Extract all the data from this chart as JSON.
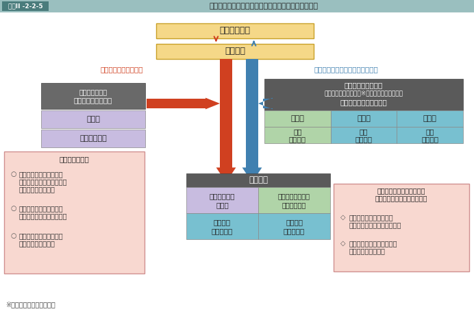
{
  "title_label": "図表II -2-2-5",
  "title_text": "自衛隊の運用体制及び統幕長と陸・海・空幕長の役割",
  "header_bg": "#9abfbf",
  "title_label_bg": "#4a7c7c",
  "title_label_color": "#ffffff",
  "box_naikaku": "内閣総理大臣",
  "box_boei": "防衛大臣",
  "box_naikaku_color": "#f5d888",
  "box_boei_color": "#f5d888",
  "box_naikaku_edge": "#d4a830",
  "label_un_left": "運用に関する指揮系統",
  "label_un_right": "運用以外の隊務に関する指揮系統",
  "label_un_left_color": "#d04020",
  "label_un_right_color": "#4080b0",
  "box_force_user_line1": "部隊運用の責任",
  "box_force_user_line2": "フォース・ユーザー",
  "box_force_user_bg": "#696969",
  "box_toubaku": "統幕長",
  "box_toubaku_bg": "#c8bce0",
  "box_tokubaku": "統合幕僚監部",
  "box_tokubaku_bg": "#c8bce0",
  "box_force_provider_line1": "部隊運用以外の責任",
  "box_force_provider_line2": "（人事、教育、訓練（※）、防衛力整備など）",
  "box_force_provider_line3": "フォース・プロバイダー",
  "box_force_provider_bg": "#5a5a5a",
  "rikubaku": "陸幕長",
  "kaibaku": "海幕長",
  "kuubaku": "空幕長",
  "rikubaku_bg": "#b0d4a8",
  "kaibaku_bg": "#78c0d0",
  "kuubaku_bg": "#78c0d0",
  "rikubo_line1": "陸上",
  "rikubo_line2": "幕僚監部",
  "kaibo_line1": "海上",
  "kaibo_line2": "幕僚監部",
  "kuubo_line1": "航空",
  "kuubo_line2": "幕僚監部",
  "rikubo_bg": "#b0d4a8",
  "kaibo_bg": "#78c0d0",
  "kuubo_bg": "#78c0d0",
  "box_jittai_title": "実動部隊",
  "box_jittai_bg": "#5a5a5a",
  "box_togobu_line1": "統合任務部隊",
  "box_togobu_line2": "指揮官",
  "box_togobu_bg": "#c8bce0",
  "box_rikuso_line1": "陸上総監司令官、",
  "box_rikuso_line2": "方面総監など",
  "box_rikuso_bg": "#b0d4a8",
  "box_jieikanjo_line1": "自衛艦隊",
  "box_jieikanjo_line2": "司令官など",
  "box_jieikanjo_bg": "#78c0d0",
  "box_koukuso_line1": "航空総隊",
  "box_koukuso_line2": "司令官など",
  "box_koukuso_bg": "#78c0d0",
  "left_box_title": "統合運用の基本",
  "left_box_bg": "#f8d8d0",
  "left_box_border": "#d09090",
  "left_item1_line1": "統幕長が自衛隊の運用に",
  "left_item1_line2": "関し、軍事専門的観点から",
  "left_item1_line3": "大臣を一元的に補佐",
  "left_item2_line1": "自衛隊に対する大臣の指",
  "left_item2_line2": "揮は、統幕長を通じて行う",
  "left_item3_line1": "自衛隊に対する大臣の命",
  "left_item3_line2": "令は、統幕長が執行",
  "right_box_title_line1": "統幕長と陸・海・空幕長は",
  "right_box_title_line2": "職務遂行に当たり密接に連携",
  "right_box_bg": "#f8d8d0",
  "right_box_border": "#d09090",
  "right_item1_line1": "統幕長は後方補給などに",
  "right_item1_line2": "かかわる統一的な方針を明示",
  "right_item2_line1": "陸・海・空幕長は運用時の",
  "right_item2_line2": "後方補給などを支援",
  "footer_text": "※統合訓練は統幕長の責任",
  "arrow_red": "#d04020",
  "arrow_blue": "#4080b0"
}
